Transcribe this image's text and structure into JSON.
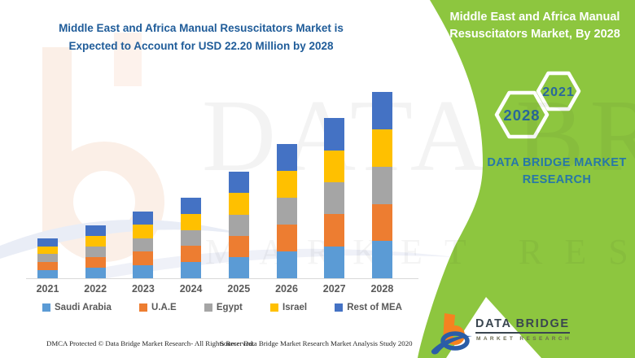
{
  "left_panel": {
    "title_line1": "Middle East and Africa Manual Resuscitators Market is",
    "title_line2": "Expected to Account for USD 22.20 Million by 2028"
  },
  "right_panel": {
    "title_line1": "Middle East and Africa Manual",
    "title_line2": "Resuscitators Market, By 2028",
    "hexagons": [
      {
        "label": "2028"
      },
      {
        "label": "2021"
      }
    ],
    "brand_line1": "DATA BRIDGE MARKET",
    "brand_line2": "RESEARCH",
    "panel_color": "#8DC63F",
    "brand_text_color": "#2777A7",
    "hexagon_year_color": "#29689B"
  },
  "chart_data": {
    "type": "bar",
    "stacked": true,
    "title": "Middle East and Africa Manual Resuscitators Market is Expected to Account for USD 22.20 Million by 2028",
    "unit": "USD Million",
    "xlabel": "",
    "ylabel": "",
    "grid": false,
    "legend_position": "bottom",
    "categories": [
      "2021",
      "2022",
      "2023",
      "2024",
      "2025",
      "2026",
      "2027",
      "2028"
    ],
    "totals": [
      4.8,
      6.3,
      8.0,
      9.6,
      12.7,
      16.0,
      19.1,
      22.2
    ],
    "highlight_value": "USD 22.20 Million by 2028",
    "series": [
      {
        "name": "Saudi Arabia",
        "color": "#5B9BD5",
        "values": [
          0.96,
          1.26,
          1.6,
          1.92,
          2.54,
          3.2,
          3.82,
          4.44
        ]
      },
      {
        "name": "U.A.E",
        "color": "#ED7D31",
        "values": [
          0.96,
          1.26,
          1.6,
          1.92,
          2.54,
          3.2,
          3.82,
          4.44
        ]
      },
      {
        "name": "Egypt",
        "color": "#A5A5A5",
        "values": [
          0.96,
          1.26,
          1.6,
          1.92,
          2.54,
          3.2,
          3.82,
          4.44
        ]
      },
      {
        "name": "Israel",
        "color": "#FFC000",
        "values": [
          0.96,
          1.26,
          1.6,
          1.92,
          2.54,
          3.2,
          3.82,
          4.44
        ]
      },
      {
        "name": "Rest of MEA",
        "color": "#4472C4",
        "values": [
          0.96,
          1.26,
          1.6,
          1.92,
          2.54,
          3.2,
          3.82,
          4.44
        ]
      }
    ]
  },
  "watermark": {
    "line1": "DATA BRIDGE",
    "line2": "MARKET RESEARCH"
  },
  "footer": {
    "left": "DMCA Protected © Data Bridge Market Research- All Rights Reserved.",
    "source": "Source: Data Bridge Market Research Market Analysis Study 2020"
  },
  "logo": {
    "name": "DATA BRIDGE",
    "sub": "MARKET RESEARCH",
    "orange": "#F58220",
    "blue": "#2B5DA7"
  }
}
